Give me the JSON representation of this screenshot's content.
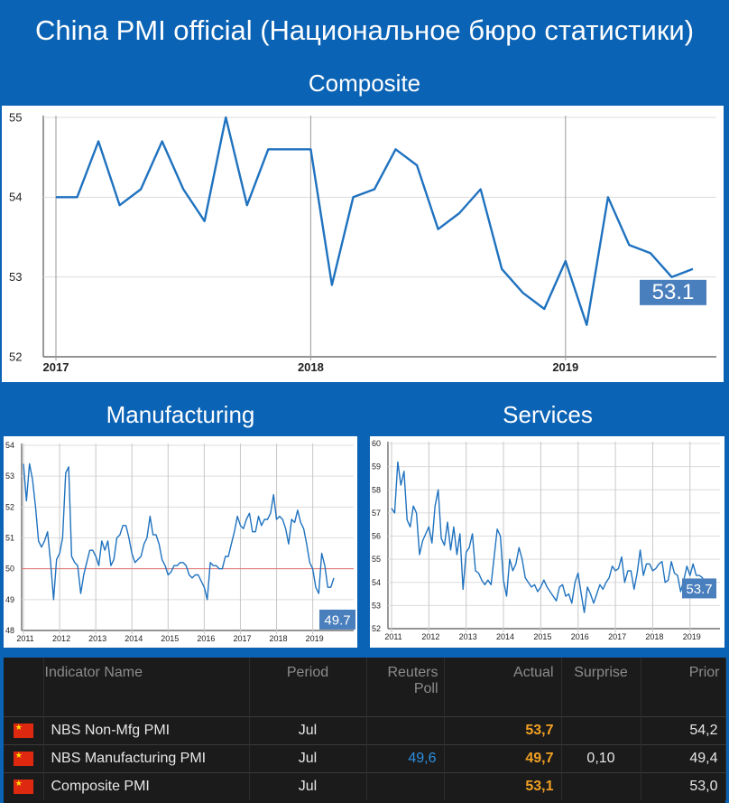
{
  "title": "China PMI official (Национальное бюро статистики)",
  "sections": {
    "composite": "Composite",
    "manufacturing": "Manufacturing",
    "services": "Services"
  },
  "chart_data": [
    {
      "type": "line",
      "name": "composite",
      "color": "#1f72bf",
      "x_ticks": [
        "2017",
        "2018",
        "2019"
      ],
      "y_ticks": [
        52,
        53,
        54,
        55
      ],
      "ylim": [
        52,
        55
      ],
      "grid": true,
      "last_value_label": "53.1",
      "x": [
        "2017-01",
        "2017-02",
        "2017-03",
        "2017-04",
        "2017-05",
        "2017-06",
        "2017-07",
        "2017-08",
        "2017-09",
        "2017-10",
        "2017-11",
        "2017-12",
        "2018-01",
        "2018-02",
        "2018-03",
        "2018-04",
        "2018-05",
        "2018-06",
        "2018-07",
        "2018-08",
        "2018-09",
        "2018-10",
        "2018-11",
        "2018-12",
        "2019-01",
        "2019-02",
        "2019-03",
        "2019-04",
        "2019-05",
        "2019-06",
        "2019-07"
      ],
      "values": [
        54.0,
        54.0,
        54.7,
        53.9,
        54.1,
        54.7,
        54.1,
        53.7,
        55.0,
        53.9,
        54.6,
        54.6,
        54.6,
        52.9,
        54.0,
        54.1,
        54.6,
        54.4,
        53.6,
        53.8,
        54.1,
        53.1,
        52.8,
        52.6,
        53.2,
        52.4,
        54.0,
        53.4,
        53.3,
        53.0,
        53.1
      ]
    },
    {
      "type": "line",
      "name": "manufacturing",
      "color": "#1f72bf",
      "x_ticks": [
        "2011",
        "2012",
        "2013",
        "2014",
        "2015",
        "2016",
        "2017",
        "2018",
        "2019"
      ],
      "y_ticks": [
        48,
        49,
        50,
        51,
        52,
        53,
        54
      ],
      "ylim": [
        48,
        54
      ],
      "reference_line": 50,
      "last_value_label": "49.7",
      "values": [
        53.4,
        52.2,
        53.4,
        52.9,
        52.0,
        50.9,
        50.7,
        50.9,
        51.2,
        50.2,
        49.0,
        50.3,
        50.5,
        51.0,
        53.1,
        53.3,
        50.4,
        50.2,
        50.1,
        49.2,
        49.8,
        50.2,
        50.6,
        50.6,
        50.4,
        50.1,
        50.9,
        50.6,
        50.9,
        50.1,
        50.3,
        51.0,
        51.1,
        51.4,
        51.4,
        51.0,
        50.5,
        50.2,
        50.3,
        50.4,
        50.8,
        51.0,
        51.7,
        51.1,
        51.1,
        50.8,
        50.3,
        50.1,
        49.8,
        49.9,
        50.1,
        50.1,
        50.2,
        50.2,
        50.1,
        49.8,
        49.7,
        49.8,
        49.8,
        49.6,
        49.4,
        49.0,
        50.2,
        50.1,
        50.1,
        50.0,
        50.0,
        50.4,
        50.4,
        50.8,
        51.2,
        51.7,
        51.4,
        51.3,
        51.6,
        51.8,
        51.2,
        51.2,
        51.7,
        51.4,
        51.6,
        51.6,
        51.8,
        52.4,
        51.6,
        51.7,
        51.6,
        51.3,
        50.8,
        51.6,
        51.5,
        51.9,
        51.5,
        51.3,
        50.8,
        50.2,
        50.0,
        49.4,
        49.2,
        50.5,
        50.1,
        49.4,
        49.4,
        49.7
      ]
    },
    {
      "type": "line",
      "name": "services",
      "color": "#1f72bf",
      "x_ticks": [
        "2011",
        "2012",
        "2013",
        "2014",
        "2015",
        "2016",
        "2017",
        "2018",
        "2019"
      ],
      "y_ticks": [
        52,
        53,
        54,
        55,
        56,
        57,
        58,
        59,
        60
      ],
      "ylim": [
        52,
        60
      ],
      "last_value_label": "53.7",
      "values": [
        57.2,
        57.0,
        59.2,
        58.2,
        58.8,
        56.7,
        56.4,
        57.3,
        57.0,
        55.2,
        55.8,
        56.1,
        56.4,
        55.7,
        57.3,
        58.0,
        55.9,
        55.6,
        56.6,
        55.4,
        56.4,
        55.2,
        56.1,
        53.7,
        55.3,
        55.5,
        56.1,
        54.5,
        54.4,
        54.1,
        53.9,
        54.1,
        53.9,
        55.1,
        56.3,
        56.0,
        54.1,
        53.4,
        55.0,
        54.5,
        54.8,
        55.5,
        55.0,
        54.2,
        54.0,
        53.8,
        53.9,
        53.6,
        53.8,
        54.1,
        53.8,
        53.6,
        53.4,
        53.2,
        53.8,
        53.9,
        53.4,
        53.5,
        53.1,
        54.0,
        54.4,
        53.5,
        52.7,
        53.8,
        53.5,
        53.1,
        53.5,
        53.9,
        53.7,
        54.0,
        54.2,
        54.7,
        54.5,
        54.6,
        55.1,
        54.0,
        54.5,
        54.5,
        53.7,
        54.4,
        55.4,
        54.3,
        54.8,
        54.8,
        54.5,
        54.6,
        54.8,
        54.9,
        54.0,
        54.1,
        54.9,
        54.4,
        54.3,
        53.6,
        54.1,
        54.7,
        54.3,
        54.8,
        54.3,
        54.3,
        54.2,
        53.7
      ]
    }
  ],
  "table": {
    "headers": [
      "Indicator Name",
      "Period",
      "Reuters Poll",
      "Actual",
      "Surprise",
      "Prior"
    ],
    "rows": [
      {
        "flag": "china-flag-icon",
        "name": "NBS Non-Mfg PMI",
        "period": "Jul",
        "poll": "",
        "actual": "53,7",
        "surprise": "",
        "prior": "54,2"
      },
      {
        "flag": "china-flag-icon",
        "name": "NBS Manufacturing PMI",
        "period": "Jul",
        "poll": "49,6",
        "actual": "49,7",
        "surprise": "0,10",
        "prior": "49,4"
      },
      {
        "flag": "china-flag-icon",
        "name": "Composite PMI",
        "period": "Jul",
        "poll": "",
        "actual": "53,1",
        "surprise": "",
        "prior": "53,0"
      }
    ]
  }
}
